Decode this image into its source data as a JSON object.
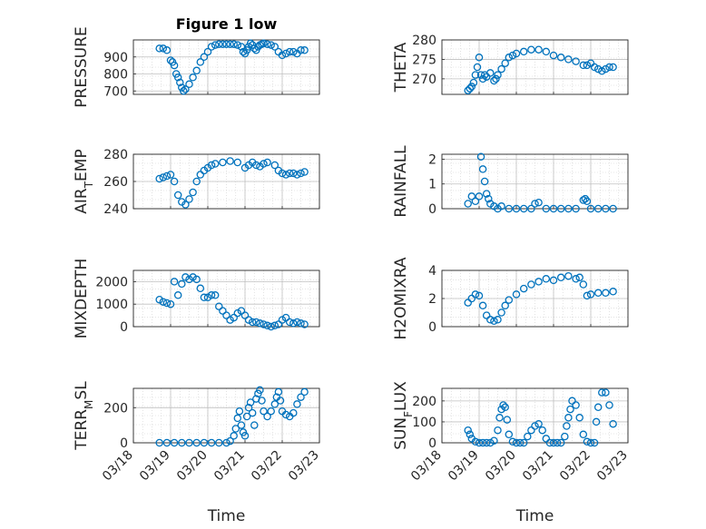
{
  "chart_data": [
    {
      "type": "scatter",
      "title": "Figure 1 low",
      "ylabel": "PRESSURE",
      "xlabel": "",
      "ylim": [
        680,
        1000
      ],
      "yticks": [
        "900",
        "800",
        "700"
      ],
      "ytick_values": [
        900,
        800,
        700
      ],
      "series": [
        {
          "x": [
            0.7,
            0.8,
            0.9,
            1.0,
            1.05,
            1.1,
            1.15,
            1.2,
            1.25,
            1.3,
            1.35,
            1.4,
            1.5,
            1.6,
            1.7,
            1.8,
            1.9,
            2.0,
            2.1,
            2.2,
            2.3,
            2.4,
            2.5,
            2.6,
            2.7,
            2.8,
            2.9,
            2.95,
            3.0,
            3.05,
            3.1,
            3.15,
            3.2,
            3.25,
            3.3,
            3.35,
            3.4,
            3.45,
            3.5,
            3.6,
            3.7,
            3.8,
            3.9,
            4.0,
            4.1,
            4.2,
            4.3,
            4.4,
            4.5,
            4.6
          ],
          "y": [
            950,
            950,
            940,
            880,
            870,
            850,
            800,
            780,
            750,
            720,
            700,
            710,
            740,
            780,
            820,
            870,
            900,
            930,
            960,
            970,
            975,
            975,
            975,
            975,
            975,
            970,
            960,
            930,
            920,
            940,
            960,
            980,
            970,
            950,
            940,
            960,
            970,
            975,
            980,
            975,
            970,
            960,
            930,
            910,
            920,
            930,
            930,
            920,
            940,
            940
          ]
        }
      ]
    },
    {
      "type": "scatter",
      "ylabel": "THETA",
      "xlabel": "",
      "ylim": [
        266,
        280
      ],
      "yticks": [
        "280",
        "275",
        "270"
      ],
      "ytick_values": [
        280,
        275,
        270
      ],
      "series": [
        {
          "x": [
            0.7,
            0.75,
            0.8,
            0.85,
            0.9,
            0.95,
            1.0,
            1.05,
            1.1,
            1.15,
            1.2,
            1.3,
            1.4,
            1.45,
            1.5,
            1.6,
            1.7,
            1.8,
            1.9,
            2.0,
            2.2,
            2.4,
            2.6,
            2.8,
            3.0,
            3.2,
            3.4,
            3.6,
            3.8,
            3.9,
            4.0,
            4.1,
            4.2,
            4.3,
            4.4,
            4.5,
            4.6
          ],
          "y": [
            267,
            267.5,
            268,
            269,
            271,
            273,
            275.5,
            271,
            270,
            271,
            270.5,
            271.5,
            269.5,
            270,
            271,
            272.5,
            274,
            275.5,
            276,
            276.5,
            277,
            277.5,
            277.5,
            277,
            276,
            275.5,
            275,
            274.5,
            273.5,
            273.5,
            274,
            273,
            272.5,
            272,
            272.5,
            273,
            273
          ]
        }
      ]
    },
    {
      "type": "scatter",
      "ylabel": "AIR_TEMP",
      "xlabel": "",
      "ylim": [
        240,
        280
      ],
      "yticks": [
        "280",
        "260",
        "240"
      ],
      "ytick_values": [
        280,
        260,
        240
      ],
      "series": [
        {
          "x": [
            0.7,
            0.8,
            0.9,
            1.0,
            1.1,
            1.2,
            1.3,
            1.4,
            1.5,
            1.6,
            1.7,
            1.8,
            1.9,
            2.0,
            2.1,
            2.2,
            2.4,
            2.6,
            2.8,
            3.0,
            3.1,
            3.2,
            3.3,
            3.4,
            3.5,
            3.6,
            3.8,
            3.9,
            4.0,
            4.1,
            4.2,
            4.3,
            4.4,
            4.5,
            4.6
          ],
          "y": [
            262,
            263,
            264,
            265,
            260,
            250,
            245,
            243,
            247,
            252,
            260,
            265,
            268,
            270,
            272,
            273,
            274,
            275,
            274,
            270,
            272,
            274,
            272,
            271,
            273,
            274,
            272,
            268,
            266,
            265,
            266,
            266,
            265,
            266,
            267
          ]
        }
      ]
    },
    {
      "type": "scatter",
      "ylabel": "RAINFALL",
      "xlabel": "",
      "ylim": [
        0,
        2.2
      ],
      "yticks": [
        "2",
        "1",
        "0"
      ],
      "ytick_values": [
        2,
        1,
        0
      ],
      "series": [
        {
          "x": [
            0.7,
            0.8,
            0.9,
            1.0,
            1.05,
            1.1,
            1.15,
            1.2,
            1.25,
            1.3,
            1.4,
            1.5,
            1.6,
            1.8,
            2.0,
            2.2,
            2.4,
            2.5,
            2.6,
            2.8,
            3.0,
            3.2,
            3.4,
            3.6,
            3.8,
            3.85,
            3.9,
            4.0,
            4.2,
            4.4,
            4.6
          ],
          "y": [
            0.2,
            0.5,
            0.3,
            0.5,
            2.1,
            1.6,
            1.1,
            0.6,
            0.4,
            0.2,
            0.1,
            0,
            0.1,
            0,
            0,
            0,
            0,
            0.2,
            0.25,
            0,
            0,
            0,
            0,
            0,
            0.35,
            0.4,
            0.3,
            0,
            0,
            0,
            0
          ]
        }
      ]
    },
    {
      "type": "scatter",
      "ylabel": "MIXDEPTH",
      "xlabel": "",
      "ylim": [
        0,
        2500
      ],
      "yticks": [
        "2000",
        "1000",
        "0"
      ],
      "ytick_values": [
        2000,
        1000,
        0
      ],
      "series": [
        {
          "x": [
            0.7,
            0.8,
            0.9,
            1.0,
            1.1,
            1.2,
            1.3,
            1.4,
            1.5,
            1.6,
            1.7,
            1.8,
            1.9,
            2.0,
            2.1,
            2.2,
            2.3,
            2.4,
            2.5,
            2.6,
            2.7,
            2.8,
            2.9,
            3.0,
            3.1,
            3.2,
            3.3,
            3.4,
            3.5,
            3.6,
            3.7,
            3.8,
            3.9,
            4.0,
            4.1,
            4.2,
            4.3,
            4.4,
            4.5,
            4.6
          ],
          "y": [
            1200,
            1100,
            1050,
            1000,
            2000,
            1400,
            1900,
            2200,
            2100,
            2200,
            2100,
            1700,
            1300,
            1300,
            1400,
            1400,
            900,
            700,
            500,
            300,
            400,
            600,
            700,
            500,
            300,
            200,
            200,
            150,
            100,
            50,
            0,
            50,
            100,
            300,
            400,
            200,
            150,
            200,
            150,
            100
          ]
        }
      ]
    },
    {
      "type": "scatter",
      "ylabel": "H2OMIXRA",
      "xlabel": "",
      "ylim": [
        0,
        4
      ],
      "yticks": [
        "4",
        "2",
        "0"
      ],
      "ytick_values": [
        4,
        2,
        0
      ],
      "series": [
        {
          "x": [
            0.7,
            0.8,
            0.9,
            1.0,
            1.1,
            1.2,
            1.3,
            1.4,
            1.5,
            1.6,
            1.7,
            1.8,
            2.0,
            2.2,
            2.4,
            2.6,
            2.8,
            3.0,
            3.2,
            3.4,
            3.6,
            3.7,
            3.8,
            3.9,
            4.0,
            4.2,
            4.4,
            4.6
          ],
          "y": [
            1.7,
            2.0,
            2.3,
            2.2,
            1.5,
            0.8,
            0.5,
            0.4,
            0.5,
            1.0,
            1.5,
            1.9,
            2.3,
            2.7,
            3.0,
            3.2,
            3.4,
            3.3,
            3.5,
            3.6,
            3.4,
            3.5,
            3.0,
            2.2,
            2.3,
            2.4,
            2.4,
            2.5
          ]
        }
      ]
    },
    {
      "type": "scatter",
      "ylabel": "TERR_MSL",
      "xlabel": "Time",
      "xticks": [
        "03/18",
        "03/19",
        "03/20",
        "03/21",
        "03/22",
        "03/23"
      ],
      "ylim": [
        0,
        310
      ],
      "yticks": [
        "200",
        "0"
      ],
      "ytick_values": [
        200,
        0
      ],
      "series": [
        {
          "x": [
            0.7,
            0.9,
            1.1,
            1.3,
            1.5,
            1.7,
            1.9,
            2.1,
            2.3,
            2.5,
            2.6,
            2.7,
            2.75,
            2.8,
            2.85,
            2.9,
            2.95,
            3.0,
            3.05,
            3.1,
            3.15,
            3.2,
            3.25,
            3.3,
            3.35,
            3.4,
            3.45,
            3.5,
            3.6,
            3.7,
            3.8,
            3.85,
            3.9,
            3.95,
            4.0,
            4.1,
            4.2,
            4.3,
            4.4,
            4.5,
            4.6
          ],
          "y": [
            0,
            0,
            0,
            0,
            0,
            0,
            0,
            0,
            0,
            0,
            10,
            40,
            80,
            140,
            180,
            100,
            60,
            40,
            150,
            200,
            230,
            170,
            100,
            250,
            280,
            300,
            240,
            180,
            150,
            180,
            220,
            260,
            290,
            240,
            180,
            160,
            150,
            170,
            220,
            260,
            290
          ]
        }
      ]
    },
    {
      "type": "scatter",
      "ylabel": "SUN_FLUX",
      "xlabel": "Time",
      "xticks": [
        "03/18",
        "03/19",
        "03/20",
        "03/21",
        "03/22",
        "03/23"
      ],
      "ylim": [
        0,
        260
      ],
      "yticks": [
        "200",
        "100",
        "0"
      ],
      "ytick_values": [
        200,
        100,
        0
      ],
      "series": [
        {
          "x": [
            0.7,
            0.75,
            0.8,
            0.9,
            1.0,
            1.1,
            1.2,
            1.3,
            1.4,
            1.5,
            1.55,
            1.6,
            1.65,
            1.7,
            1.75,
            1.8,
            1.9,
            2.0,
            2.1,
            2.2,
            2.3,
            2.4,
            2.5,
            2.6,
            2.7,
            2.8,
            2.9,
            3.0,
            3.1,
            3.2,
            3.3,
            3.35,
            3.4,
            3.45,
            3.5,
            3.6,
            3.7,
            3.8,
            3.9,
            4.0,
            4.1,
            4.15,
            4.2,
            4.3,
            4.4,
            4.5,
            4.6
          ],
          "y": [
            60,
            40,
            20,
            5,
            0,
            0,
            0,
            0,
            10,
            60,
            120,
            160,
            180,
            170,
            110,
            40,
            5,
            0,
            0,
            0,
            30,
            60,
            80,
            90,
            60,
            20,
            0,
            0,
            0,
            0,
            30,
            80,
            120,
            160,
            200,
            180,
            120,
            40,
            5,
            0,
            0,
            100,
            170,
            240,
            240,
            180,
            90
          ]
        }
      ]
    }
  ]
}
